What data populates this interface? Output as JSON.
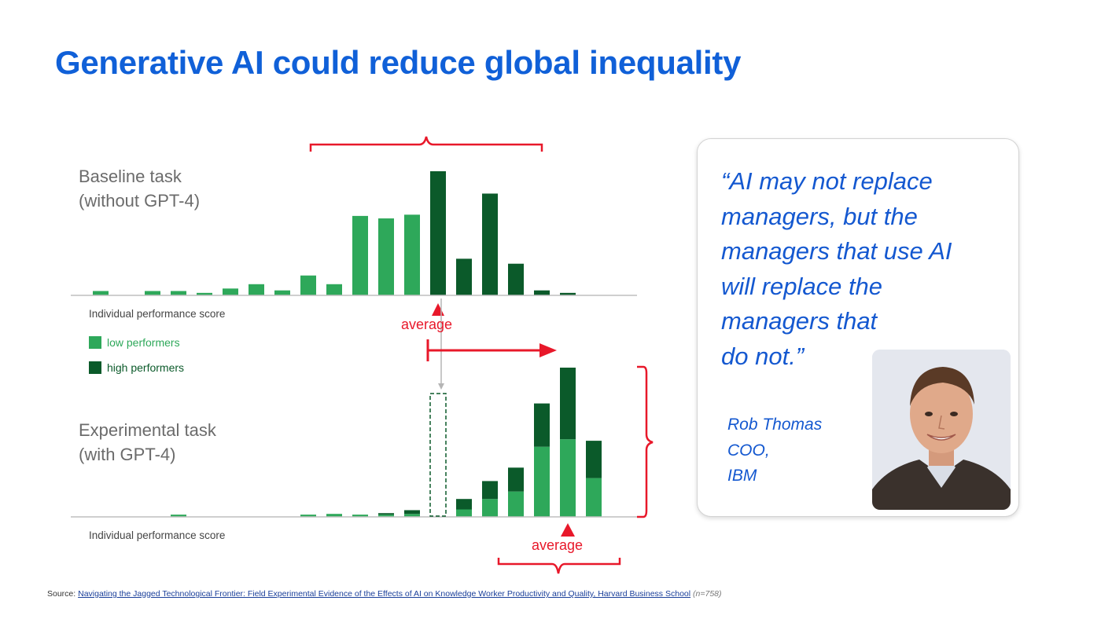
{
  "slide": {
    "title": "Generative AI could reduce global inequality"
  },
  "quote": {
    "text": "“AI may not replace\n managers, but the\n managers that use AI\n will replace the\n managers that\n do not.”",
    "author_name": "Rob Thomas",
    "author_role": "COO,",
    "author_org": "IBM",
    "photo_icon": "person-portrait"
  },
  "source": {
    "prefix": "Source:",
    "link_text": "Navigating the Jagged Technological Frontier: Field Experimental Evidence of the Effects of AI on Knowledge Worker Productivity and Quality, Harvard Business School",
    "sample": "(n=758)"
  },
  "colors": {
    "title": "#1060d8",
    "low_performers": "#2ea85a",
    "high_performers": "#0b5a2a",
    "annotation_red": "#e8182a",
    "quote_text": "#1458d0"
  },
  "chart_data": [
    {
      "type": "bar",
      "title_lines": [
        "Baseline task",
        "(without GPT-4)"
      ],
      "xlabel": "Individual performance score",
      "ylim": [
        0,
        100
      ],
      "average_label": "average",
      "average_bin": 14,
      "legend": [
        {
          "name": "low performers",
          "color": "#2ea85a"
        },
        {
          "name": "high performers",
          "color": "#0b5a2a"
        }
      ],
      "bins": [
        1,
        2,
        3,
        4,
        5,
        6,
        7,
        8,
        9,
        10,
        11,
        12,
        13,
        14,
        15,
        16,
        17,
        18,
        19,
        20
      ],
      "series": [
        {
          "name": "low performers",
          "values": [
            3.5,
            0,
            3.5,
            3.5,
            2,
            5.5,
            9,
            4,
            16,
            9,
            64,
            62,
            65,
            0,
            0,
            0,
            0,
            0,
            0,
            0
          ]
        },
        {
          "name": "high performers",
          "values": [
            0,
            0,
            0,
            0,
            0,
            0,
            0,
            0,
            0,
            0,
            0,
            0,
            0,
            100,
            29.5,
            82,
            25.5,
            4,
            2,
            0
          ]
        }
      ]
    },
    {
      "type": "bar",
      "stacked": true,
      "title_lines": [
        "Experimental task",
        "(with GPT-4)"
      ],
      "xlabel": "Individual performance score",
      "ylim": [
        0,
        100
      ],
      "average_label": "average",
      "average_bin": 19,
      "baseline_average_bin": 14,
      "bins": [
        1,
        2,
        3,
        4,
        5,
        6,
        7,
        8,
        9,
        10,
        11,
        12,
        13,
        14,
        15,
        16,
        17,
        18,
        19,
        20,
        21
      ],
      "series": [
        {
          "name": "low performers",
          "values": [
            0,
            0,
            0,
            1.5,
            0,
            0,
            0,
            0,
            1.5,
            2,
            1.5,
            1.5,
            2,
            0,
            5,
            12,
            17,
            47,
            52,
            26,
            0
          ]
        },
        {
          "name": "high performers",
          "values": [
            0,
            0,
            0,
            0,
            0,
            0,
            0,
            0,
            0,
            0,
            0,
            1,
            2.5,
            0,
            7,
            12,
            16,
            29,
            48,
            25,
            0
          ]
        }
      ]
    }
  ]
}
